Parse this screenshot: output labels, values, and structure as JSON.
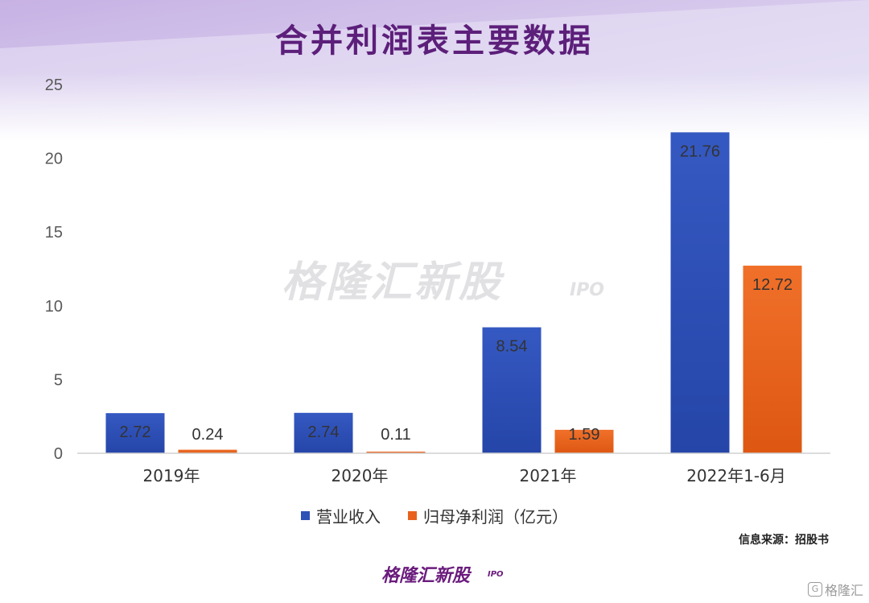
{
  "title": "合并利润表主要数据",
  "watermark": {
    "main": "格隆汇新股",
    "sub": "IPO"
  },
  "source": "信息来源：招股书",
  "logo": {
    "main": "格隆汇新股",
    "sub": "IPO"
  },
  "corner_mark": {
    "icon": "G",
    "text": "格隆汇"
  },
  "colors": {
    "revenue": "#2e52b6",
    "profit": "#e8621e",
    "title": "#5c1f7a"
  },
  "chart_data": {
    "type": "bar",
    "categories": [
      "2019年",
      "2020年",
      "2021年",
      "2022年1-6月"
    ],
    "series": [
      {
        "name": "营业收入",
        "values": [
          2.72,
          2.74,
          8.54,
          21.76
        ],
        "labels": [
          "2.72",
          "2.74",
          "8.54",
          "21.76"
        ]
      },
      {
        "name": "归母净利润（亿元）",
        "values": [
          0.24,
          0.11,
          1.59,
          12.72
        ],
        "labels": [
          "0.24",
          "0.11",
          "1.59",
          "12.72"
        ]
      }
    ],
    "ylim": [
      0,
      25
    ],
    "yticks": [
      0,
      5,
      10,
      15,
      20,
      25
    ],
    "grid": false,
    "legend": "bottom-center"
  }
}
